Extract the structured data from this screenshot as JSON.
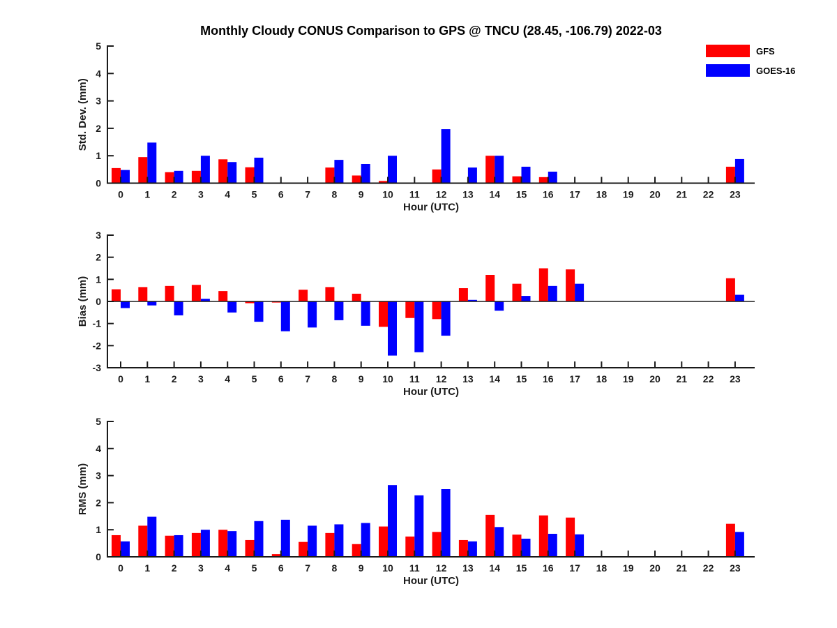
{
  "page": {
    "title": "Monthly Cloudy CONUS Comparison to GPS @ TNCU (28.45, -106.79) 2022-03"
  },
  "legend": {
    "items": [
      {
        "label": "GFS",
        "color": "#FF0000"
      },
      {
        "label": "GOES-16",
        "color": "#0000FF"
      }
    ]
  },
  "xlabel": "Hour (UTC)",
  "hours": [
    "0",
    "1",
    "2",
    "3",
    "4",
    "5",
    "6",
    "7",
    "8",
    "9",
    "10",
    "11",
    "12",
    "13",
    "14",
    "15",
    "16",
    "17",
    "18",
    "19",
    "20",
    "21",
    "22",
    "23"
  ],
  "axis_color": "#1a1a1a",
  "chart_data": [
    {
      "type": "bar",
      "name": "std-dev",
      "ylabel": "Std. Dev. (mm)",
      "ylim": [
        0,
        5
      ],
      "yticks": [
        0,
        1,
        2,
        3,
        4,
        5
      ],
      "grid": false,
      "legend_position": "top-right-outside",
      "categories": [
        0,
        1,
        2,
        3,
        4,
        5,
        6,
        7,
        8,
        9,
        10,
        11,
        12,
        13,
        14,
        15,
        16,
        17,
        18,
        19,
        20,
        21,
        22,
        23
      ],
      "series": [
        {
          "name": "GFS",
          "color": "#FF0000",
          "values": [
            0.55,
            0.95,
            0.4,
            0.45,
            0.87,
            0.58,
            0,
            0,
            0.57,
            0.28,
            0.08,
            0,
            0.5,
            0.02,
            1.0,
            0.25,
            0.22,
            0,
            0,
            0,
            0,
            0,
            0,
            0.6
          ]
        },
        {
          "name": "GOES-16",
          "color": "#0000FF",
          "values": [
            0.48,
            1.48,
            0.45,
            1.0,
            0.77,
            0.93,
            0,
            0,
            0.85,
            0.7,
            1.0,
            0,
            1.97,
            0.57,
            1.0,
            0.6,
            0.42,
            0,
            0,
            0,
            0,
            0,
            0,
            0.88
          ]
        }
      ]
    },
    {
      "type": "bar",
      "name": "bias",
      "ylabel": "Bias (mm)",
      "ylim": [
        -3,
        3
      ],
      "yticks": [
        -3,
        -2,
        -1,
        0,
        1,
        2,
        3
      ],
      "grid": false,
      "categories": [
        0,
        1,
        2,
        3,
        4,
        5,
        6,
        7,
        8,
        9,
        10,
        11,
        12,
        13,
        14,
        15,
        16,
        17,
        18,
        19,
        20,
        21,
        22,
        23
      ],
      "series": [
        {
          "name": "GFS",
          "color": "#FF0000",
          "values": [
            0.55,
            0.65,
            0.7,
            0.75,
            0.47,
            -0.08,
            -0.05,
            0.53,
            0.65,
            0.35,
            -1.15,
            -0.75,
            -0.8,
            0.6,
            1.2,
            0.8,
            1.5,
            1.45,
            0,
            0,
            0,
            0,
            0,
            1.05
          ]
        },
        {
          "name": "GOES-16",
          "color": "#0000FF",
          "values": [
            -0.3,
            -0.18,
            -0.63,
            0.12,
            -0.5,
            -0.92,
            -1.35,
            -1.18,
            -0.85,
            -1.1,
            -2.45,
            -2.3,
            -1.55,
            0.07,
            -0.42,
            0.25,
            0.7,
            0.8,
            0,
            0,
            0,
            0,
            0,
            0.3
          ]
        }
      ]
    },
    {
      "type": "bar",
      "name": "rms",
      "ylabel": "RMS (mm)",
      "ylim": [
        0,
        5
      ],
      "yticks": [
        0,
        1,
        2,
        3,
        4,
        5
      ],
      "grid": false,
      "categories": [
        0,
        1,
        2,
        3,
        4,
        5,
        6,
        7,
        8,
        9,
        10,
        11,
        12,
        13,
        14,
        15,
        16,
        17,
        18,
        19,
        20,
        21,
        22,
        23
      ],
      "series": [
        {
          "name": "GFS",
          "color": "#FF0000",
          "values": [
            0.8,
            1.15,
            0.78,
            0.88,
            1.0,
            0.62,
            0.1,
            0.55,
            0.88,
            0.47,
            1.12,
            0.75,
            0.92,
            0.62,
            1.55,
            0.82,
            1.53,
            1.45,
            0,
            0,
            0,
            0,
            0,
            1.22
          ]
        },
        {
          "name": "GOES-16",
          "color": "#0000FF",
          "values": [
            0.57,
            1.48,
            0.8,
            1.0,
            0.95,
            1.32,
            1.37,
            1.15,
            1.2,
            1.25,
            2.65,
            2.27,
            2.5,
            0.57,
            1.1,
            0.67,
            0.85,
            0.83,
            0,
            0,
            0,
            0,
            0,
            0.92
          ]
        }
      ]
    }
  ]
}
